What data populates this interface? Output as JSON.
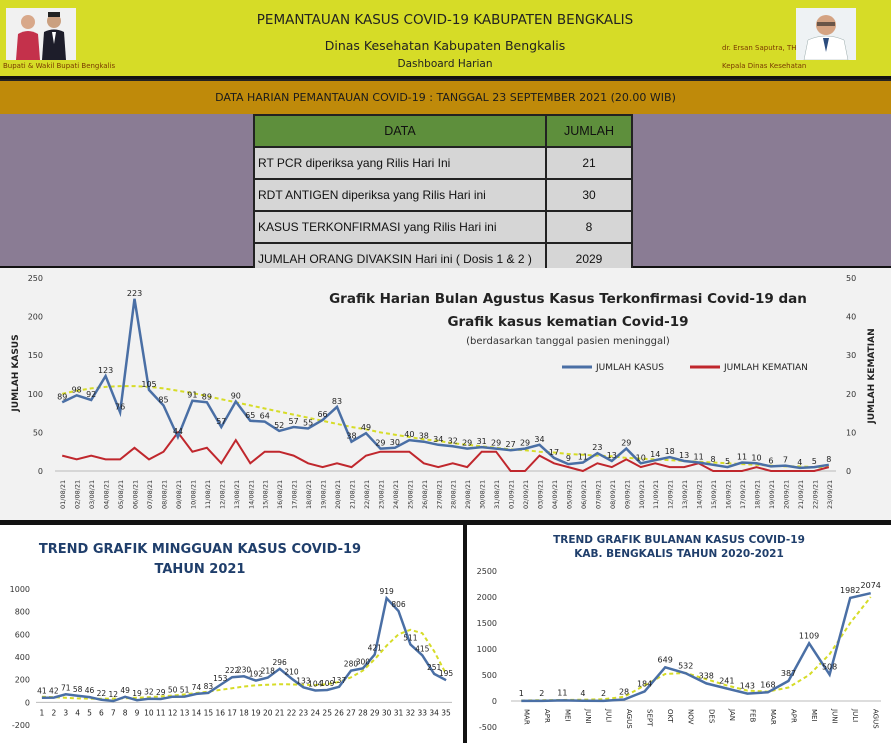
{
  "header": {
    "title": "PEMANTAUAN KASUS COVID-19 KABUPATEN BENGKALIS",
    "subtitle": "Dinas Kesehatan Kabupaten Bengkalis",
    "sub2": "Dashboard Harian",
    "left_caption": "Bupati & Wakil Bupati Bengkalis",
    "right_name": "dr. Ersan Saputra, TH",
    "right_caption": "Kepala Dinas Kesehatan"
  },
  "banner": "DATA HARIAN PEMANTAUAN COVID-19 : TANGGAL 23 SEPTEMBER 2021 (20.00 WIB)",
  "table": {
    "headers": [
      "DATA",
      "JUMLAH"
    ],
    "rows": [
      {
        "label": "RT PCR diperiksa yang Rilis Hari Ini",
        "value": "21"
      },
      {
        "label": "RDT ANTIGEN diperiksa yang Rilis Hari ini",
        "value": "30"
      },
      {
        "label": "KASUS TERKONFIRMASI yang Rilis Hari ini",
        "value": "8"
      },
      {
        "label": "JUMLAH ORANG DIVAKSIN Hari ini ( Dosis 1 & 2 )",
        "value": "2029"
      }
    ]
  },
  "chart_data": [
    {
      "type": "line",
      "title": "Grafik Harian Bulan Agustus Kasus Terkonfirmasi  Covid-19 dan",
      "subtitle": "Grafik kasus kematian Covid-19",
      "note": "(berdasarkan tanggal pasien meninggal)",
      "ylabel": "JUMLAH   KASUS",
      "y2label": "JUMLAH  KEMATIAN",
      "ylim": [
        0,
        250
      ],
      "y2lim": [
        0,
        50
      ],
      "yticks": [
        "0",
        "50",
        "100",
        "150",
        "200",
        "250"
      ],
      "y2ticks": [
        "0",
        "10",
        "20",
        "30",
        "40",
        "50"
      ],
      "legend_position": "top-right",
      "x": [
        "01/08/21",
        "02/08/21",
        "03/08/21",
        "04/08/21",
        "05/08/21",
        "06/08/21",
        "07/08/21",
        "08/08/21",
        "09/08/21",
        "10/08/21",
        "11/08/21",
        "12/08/21",
        "13/08/21",
        "14/08/21",
        "15/08/21",
        "16/08/21",
        "17/08/21",
        "18/08/21",
        "19/08/21",
        "20/08/21",
        "21/08/21",
        "22/08/21",
        "23/08/21",
        "24/08/21",
        "25/08/21",
        "26/08/21",
        "27/08/21",
        "28/08/21",
        "29/08/21",
        "30/08/21",
        "31/08/21",
        "01/09/21",
        "02/09/21",
        "03/09/21",
        "04/09/21",
        "05/09/21",
        "06/09/21",
        "07/09/21",
        "08/09/21",
        "09/09/21",
        "10/09/21",
        "11/09/21",
        "12/09/21",
        "13/09/21",
        "14/09/21",
        "15/09/21",
        "16/09/21",
        "17/09/21",
        "18/09/21",
        "19/09/21",
        "20/09/21",
        "21/09/21",
        "22/09/21",
        "23/09/21"
      ],
      "series": [
        {
          "name": "JUMLAH KASUS",
          "axis": "left",
          "color": "#4a6fa5",
          "values": [
            89,
            98,
            92,
            123,
            76,
            223,
            105,
            85,
            44,
            91,
            89,
            57,
            90,
            65,
            64,
            52,
            57,
            55,
            66,
            83,
            38,
            49,
            29,
            30,
            40,
            38,
            34,
            32,
            29,
            31,
            29,
            27,
            29,
            34,
            17,
            9,
            11,
            23,
            13,
            29,
            10,
            14,
            18,
            13,
            11,
            8,
            5,
            11,
            10,
            6,
            7,
            4,
            5,
            8
          ]
        },
        {
          "name": "JUMLAH KEMATIAN",
          "axis": "right",
          "color": "#c0272d",
          "values": [
            4,
            3,
            4,
            3,
            3,
            6,
            3,
            5,
            10,
            5,
            6,
            2,
            8,
            2,
            5,
            5,
            4,
            2,
            1,
            2,
            1,
            4,
            5,
            5,
            5,
            2,
            1,
            2,
            1,
            5,
            5,
            0,
            0,
            4,
            2,
            1,
            0,
            2,
            1,
            3,
            1,
            2,
            1,
            1,
            2,
            0,
            0,
            0,
            1,
            0,
            0,
            0,
            0,
            1
          ]
        },
        {
          "name": "",
          "role": "trend",
          "color": "#d6dc27",
          "values": [
            100,
            104,
            107,
            109,
            110,
            110,
            109,
            107,
            104,
            101,
            97,
            93,
            89,
            85,
            81,
            77,
            73,
            69,
            65,
            61,
            57,
            54,
            50,
            47,
            44,
            41,
            39,
            36,
            34,
            32,
            30,
            28,
            27,
            25,
            24,
            22,
            21,
            20,
            19,
            17,
            16,
            15,
            14,
            13,
            12,
            11,
            10,
            9,
            8,
            7,
            6,
            6,
            5,
            5
          ]
        }
      ]
    },
    {
      "type": "line",
      "title": "TREND GRAFIK MINGGUAN KASUS COVID-19",
      "subtitle": "TAHUN 2021",
      "ylim": [
        -200,
        1000
      ],
      "yticks": [
        "-200",
        "0",
        "200",
        "400",
        "600",
        "800",
        "1000"
      ],
      "x": [
        "1",
        "2",
        "3",
        "4",
        "5",
        "6",
        "7",
        "8",
        "9",
        "10",
        "11",
        "12",
        "13",
        "14",
        "15",
        "16",
        "17",
        "18",
        "19",
        "20",
        "21",
        "22",
        "23",
        "24",
        "25",
        "26",
        "27",
        "28",
        "29",
        "30",
        "31",
        "32",
        "33",
        "34",
        "35"
      ],
      "series": [
        {
          "name": "",
          "color": "#4a6fa5",
          "values": [
            41,
            42,
            71,
            58,
            46,
            22,
            12,
            49,
            19,
            32,
            29,
            50,
            51,
            74,
            83,
            153,
            222,
            230,
            192,
            218,
            296,
            210,
            133,
            104,
            109,
            137,
            280,
            300,
            421,
            919,
            806,
            511,
            415,
            251,
            195
          ]
        },
        {
          "name": "",
          "role": "trend",
          "color": "#d6dc27",
          "values": [
            50,
            45,
            40,
            35,
            32,
            32,
            33,
            36,
            40,
            45,
            52,
            60,
            70,
            82,
            95,
            110,
            125,
            140,
            150,
            155,
            160,
            158,
            155,
            152,
            160,
            180,
            220,
            280,
            380,
            500,
            600,
            640,
            610,
            450,
            250
          ]
        }
      ],
      "data_labels": [
        "41",
        "42",
        "71",
        "58",
        "46",
        "22",
        "12",
        "49",
        "19",
        "32",
        "29",
        "50",
        "51",
        "74",
        "83",
        "153",
        "222",
        "230",
        "192",
        "218",
        "296",
        "210",
        "133",
        "104",
        "109",
        "137",
        "280",
        "300",
        "421",
        "919",
        "806",
        "511",
        "415",
        "251",
        "195"
      ]
    },
    {
      "type": "line",
      "title": "TREND  GRAFIK BULANAN KASUS COVID-19",
      "subtitle": "KAB. BENGKALIS TAHUN 2020-2021",
      "ylim": [
        -500,
        2500
      ],
      "yticks": [
        "-500",
        "0",
        "500",
        "1000",
        "1500",
        "2000",
        "2500"
      ],
      "x": [
        "MAR",
        "APR",
        "MEI",
        "JUNI",
        "JULI",
        "AGUS",
        "SEPT",
        "OKT",
        "NOV",
        "DES",
        "JAN",
        "FEB",
        "MAR",
        "APR",
        "MEI",
        "JUNI",
        "JULI",
        "AGUS"
      ],
      "series": [
        {
          "name": "",
          "color": "#4a6fa5",
          "values": [
            1,
            2,
            11,
            4,
            2,
            28,
            184,
            649,
            532,
            338,
            241,
            143,
            168,
            387,
            1109,
            508,
            1982,
            2074
          ]
        },
        {
          "name": "",
          "role": "trend",
          "color": "#d6dc27",
          "values": [
            10,
            15,
            20,
            25,
            35,
            80,
            300,
            520,
            540,
            420,
            300,
            200,
            180,
            260,
            500,
            900,
            1500,
            2000
          ]
        }
      ],
      "data_labels": [
        "1",
        "2",
        "11",
        "4",
        "2",
        "28",
        "184",
        "649",
        "532",
        "338",
        "241",
        "143",
        "168",
        "387",
        "1109",
        "508",
        "1982",
        "2074"
      ]
    }
  ]
}
